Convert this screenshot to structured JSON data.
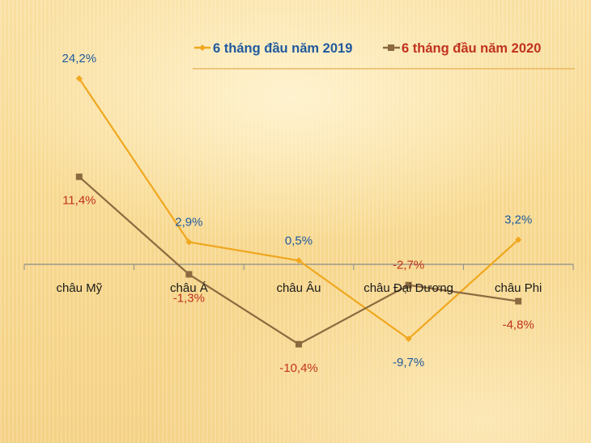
{
  "chart_data": {
    "type": "line",
    "title": "",
    "xlabel": "",
    "ylabel": "",
    "categories": [
      "châu Mỹ",
      "châu Á",
      "châu Âu",
      "châu Đại Dương",
      "châu Phi"
    ],
    "series": [
      {
        "name": "6 tháng đầu năm 2019",
        "color": "#f0a71e",
        "label_color": "#1f5a9e",
        "values": [
          24.2,
          2.9,
          0.5,
          -9.7,
          3.2
        ],
        "labels": [
          "24,2%",
          "2,9%",
          "0,5%",
          "-9,7%",
          "3,2%"
        ]
      },
      {
        "name": "6 tháng đầu năm 2020",
        "color": "#8c6a40",
        "label_color": "#c0321e",
        "values": [
          11.4,
          -1.3,
          -10.4,
          -2.7,
          -4.8
        ],
        "labels": [
          "11,4%",
          "-1,3%",
          "-10,4%",
          "-2,7%",
          "-4,8%"
        ]
      }
    ],
    "legend_position": "top-right",
    "grid": false,
    "ylim": [
      -14,
      28
    ]
  }
}
